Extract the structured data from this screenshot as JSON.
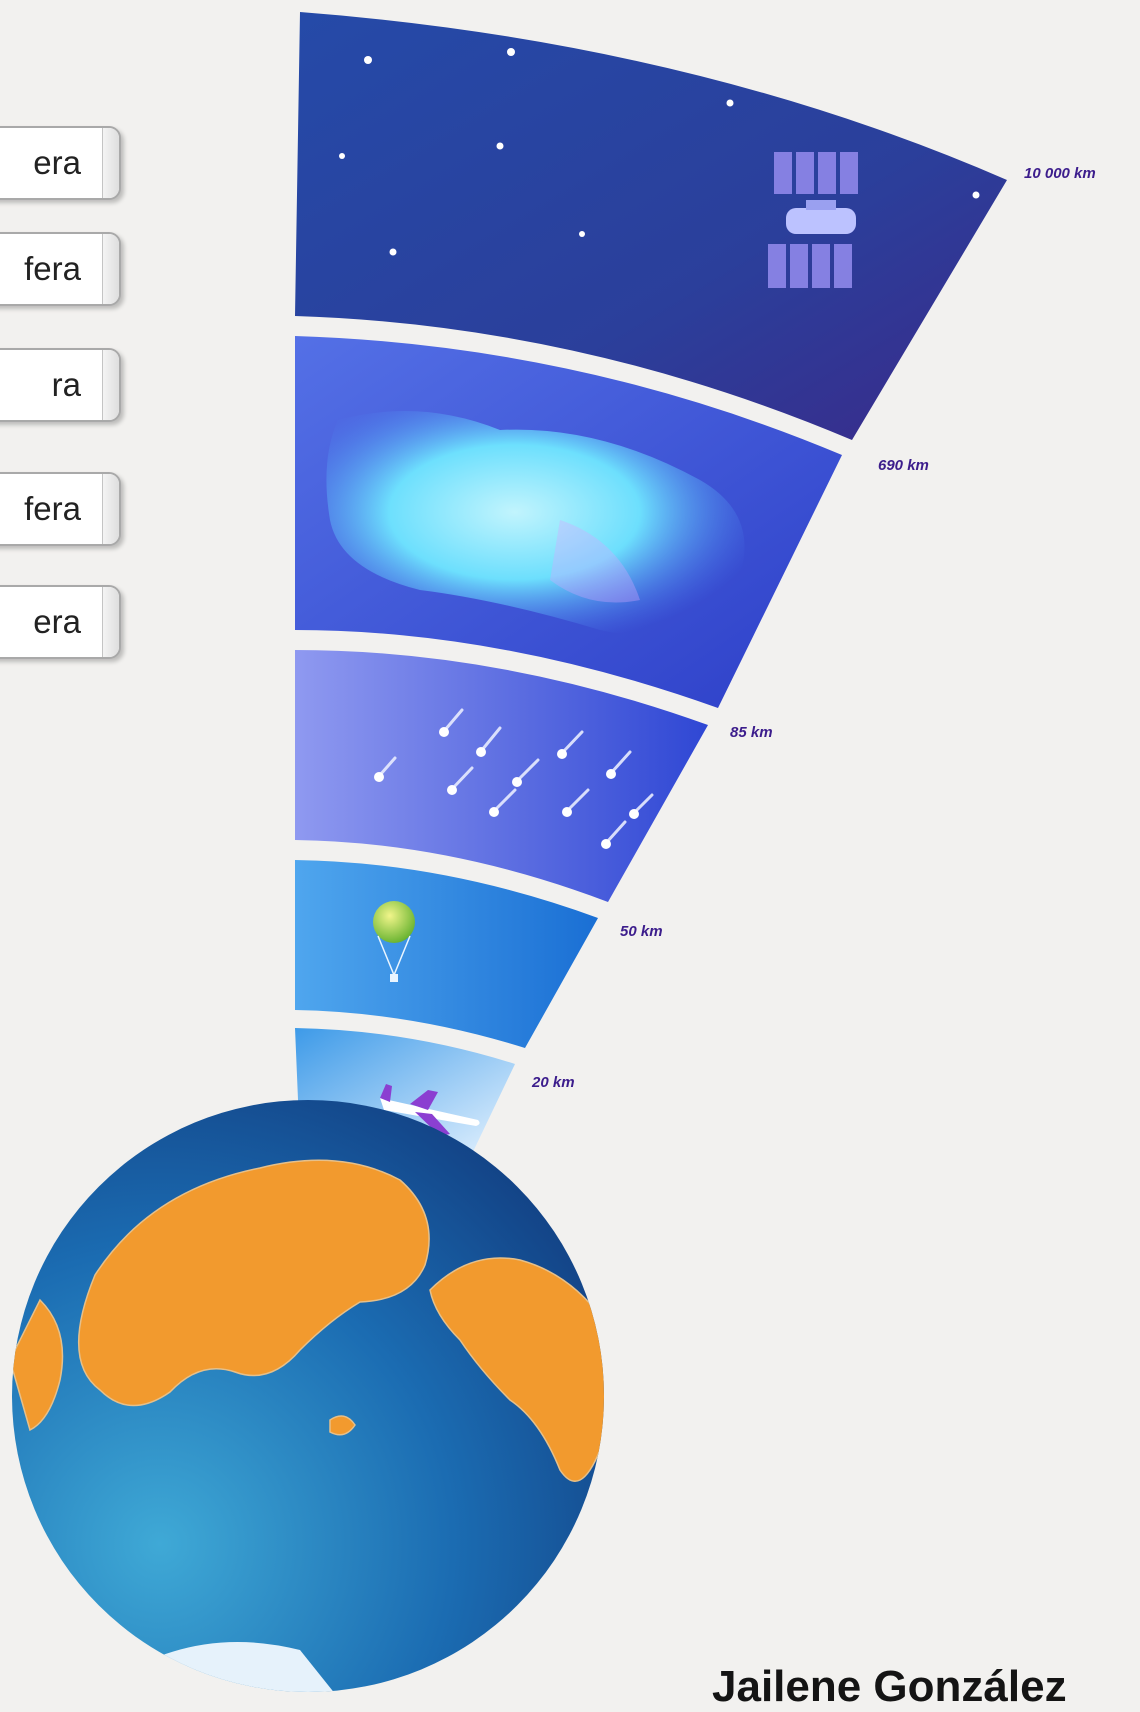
{
  "layer_tiles": [
    "era",
    "fera",
    "ra",
    "fera",
    "era"
  ],
  "altitudes": [
    "10 000 km",
    "690 km",
    "85 km",
    "50 km",
    "20 km"
  ],
  "author": "Jailene González",
  "colors": {
    "background": "#f2f1ef",
    "exosphere": "#2a3f9c",
    "thermosphere": "#3a56d6",
    "mesosphere": "#3f5ee0",
    "stratosphere": "#1f78da",
    "troposphere": "#2a8fe2",
    "ocean": "#1d6db4",
    "land": "#f29a2e",
    "altitude_label": "#3c1d8c"
  }
}
